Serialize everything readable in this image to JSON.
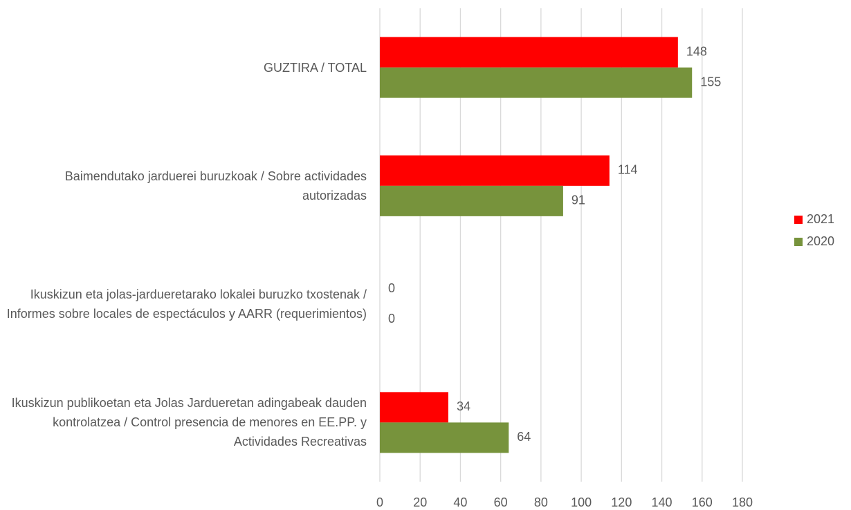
{
  "chart_data": {
    "type": "hbar",
    "categories": [
      "GUZTIRA  / TOTAL",
      "Baimendutako jarduerei buruzkoak / Sobre actividades autorizadas",
      "Ikuskizun eta jolas-jardueretarako lokalei buruzko txostenak / Informes sobre locales de espectáculos y AARR (requerimientos)",
      "Ikuskizun publikoetan eta Jolas Jardueretan adingabeak dauden kontrolatzea / Control presencia de menores en EE.PP. y Actividades Recreativas"
    ],
    "series": [
      {
        "name": "2021",
        "color": "#ff0000",
        "values": [
          148,
          114,
          0,
          34
        ]
      },
      {
        "name": "2020",
        "color": "#77933c",
        "values": [
          155,
          91,
          0,
          64
        ]
      }
    ],
    "xlim": [
      0,
      180
    ],
    "xticks": [
      0,
      20,
      40,
      60,
      80,
      100,
      120,
      140,
      160,
      180
    ],
    "grid": true,
    "legend": "right"
  }
}
